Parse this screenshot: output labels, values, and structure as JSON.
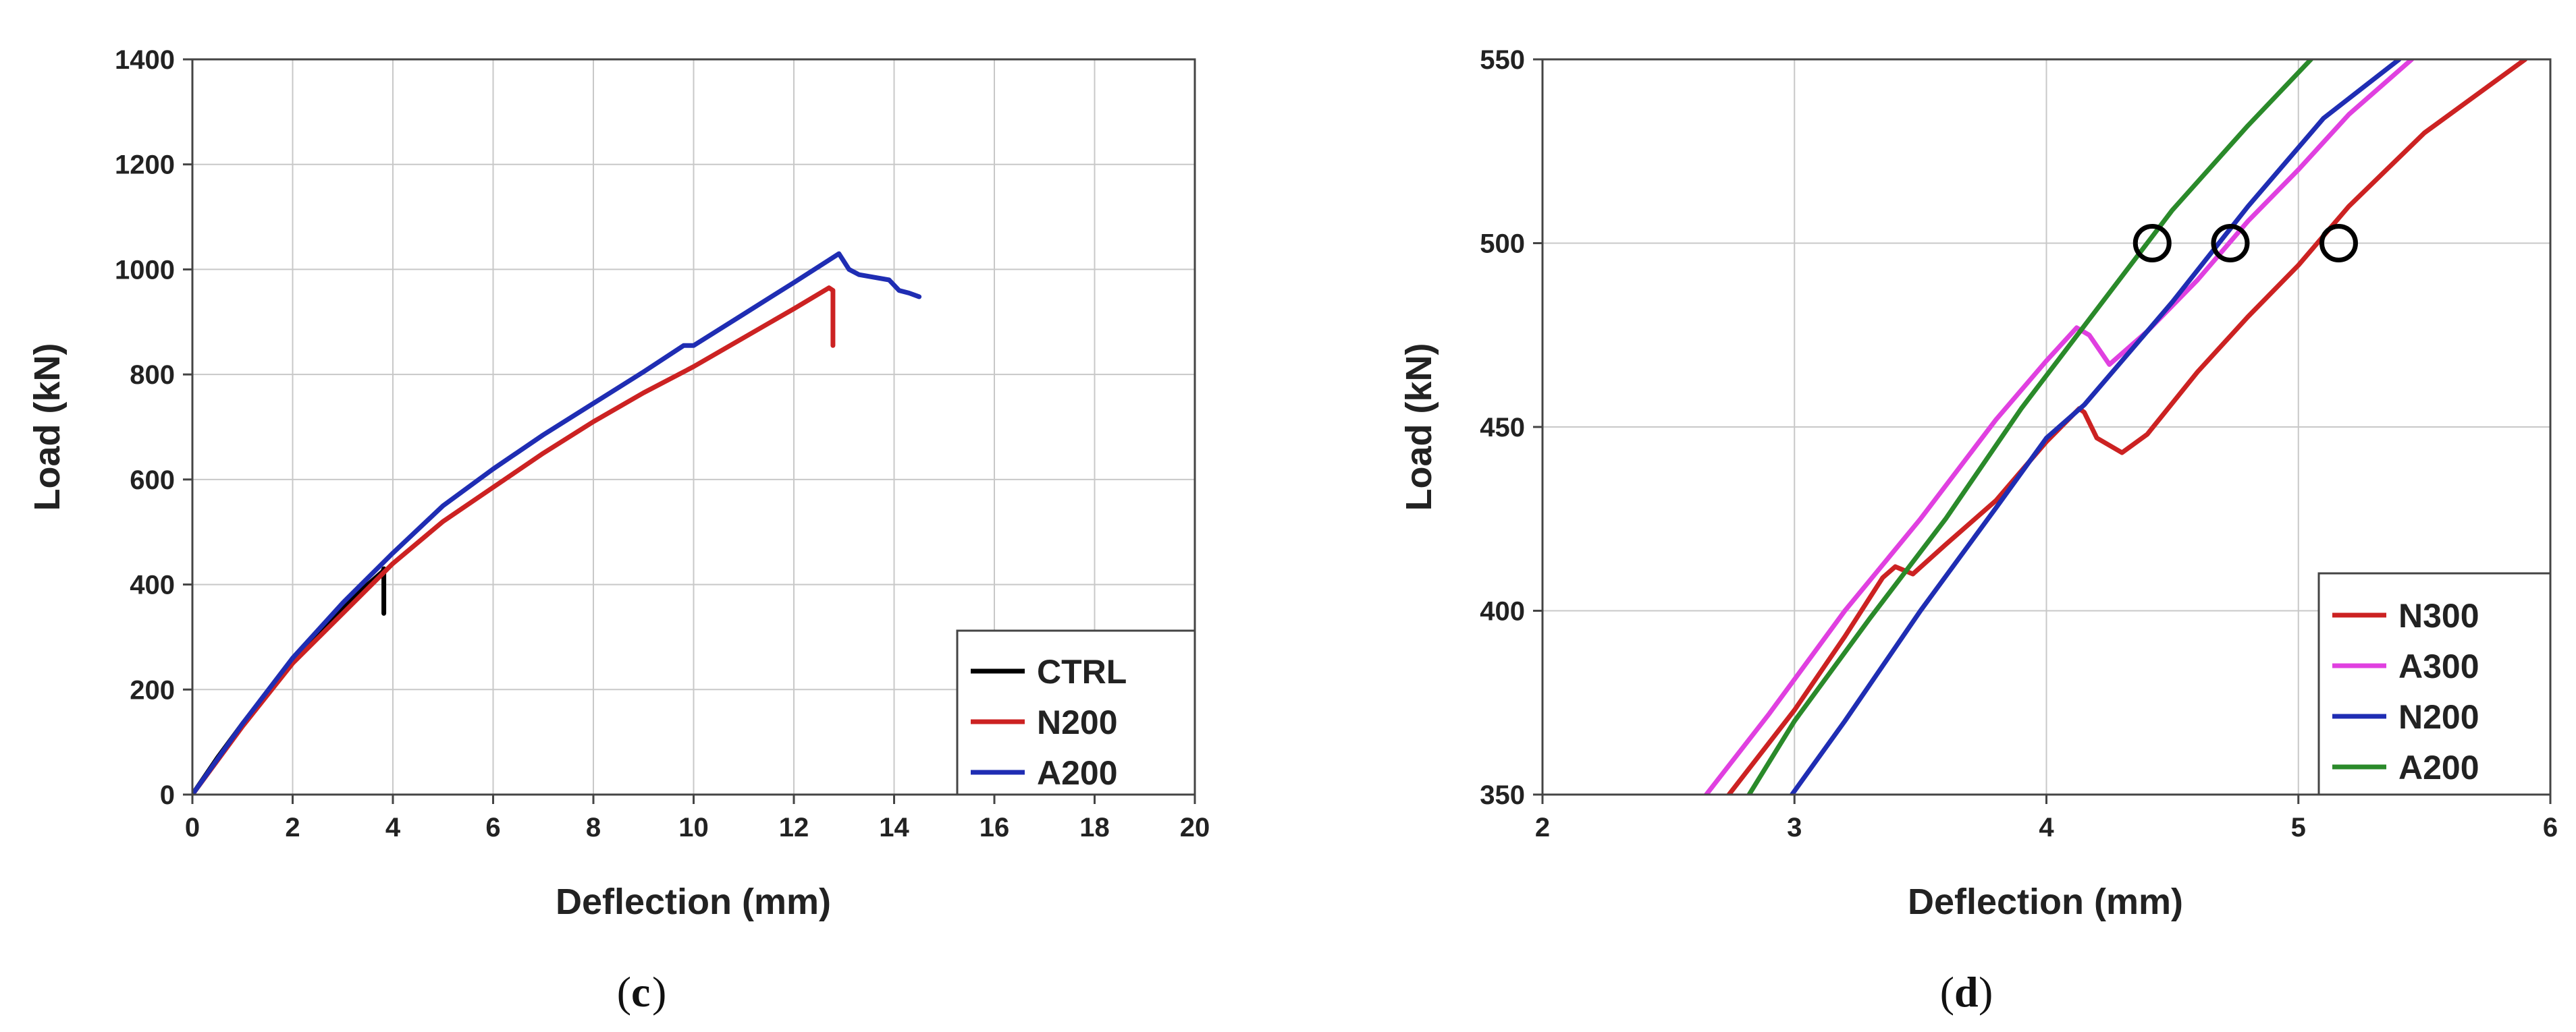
{
  "chart_data": [
    {
      "type": "line",
      "panel_label": "c",
      "xlabel": "Deflection (mm)",
      "ylabel": "Load (kN)",
      "xlim": [
        0,
        20
      ],
      "ylim": [
        0,
        1400
      ],
      "xticks": [
        0,
        2,
        4,
        6,
        8,
        10,
        12,
        14,
        16,
        18,
        20
      ],
      "yticks": [
        0,
        200,
        400,
        600,
        800,
        1000,
        1200,
        1400
      ],
      "grid": true,
      "legend_position": "bottom-right",
      "series": [
        {
          "name": "CTRL",
          "color": "#000000",
          "x": [
            0,
            0.5,
            1,
            1.5,
            2,
            2.5,
            3,
            3.5,
            3.8,
            3.82,
            3.82
          ],
          "y": [
            0,
            70,
            135,
            195,
            255,
            305,
            355,
            400,
            425,
            430,
            345
          ]
        },
        {
          "name": "N200",
          "color": "#cc2222",
          "x": [
            0,
            1,
            2,
            3,
            4,
            5,
            6,
            7,
            8,
            9,
            9.9,
            10,
            11,
            12,
            12.7,
            12.78,
            12.78
          ],
          "y": [
            0,
            130,
            250,
            345,
            440,
            520,
            585,
            650,
            710,
            765,
            810,
            815,
            870,
            925,
            965,
            960,
            855
          ]
        },
        {
          "name": "A200",
          "color": "#1f2db3",
          "x": [
            0,
            1,
            2,
            3,
            4,
            5,
            6,
            7,
            8,
            9,
            9.8,
            10,
            11,
            12,
            12.9,
            13.1,
            13.3,
            13.9,
            14.1,
            14.3,
            14.5
          ],
          "y": [
            0,
            135,
            260,
            365,
            460,
            550,
            620,
            685,
            745,
            805,
            855,
            855,
            915,
            975,
            1030,
            1000,
            990,
            980,
            960,
            955,
            948
          ]
        }
      ]
    },
    {
      "type": "line",
      "panel_label": "d",
      "xlabel": "Deflection (mm)",
      "ylabel": "Load (kN)",
      "xlim": [
        2,
        6
      ],
      "ylim": [
        350,
        550
      ],
      "xticks": [
        2,
        3,
        4,
        5,
        6
      ],
      "yticks": [
        350,
        400,
        450,
        500,
        550
      ],
      "grid": true,
      "legend_position": "bottom-right",
      "markers": [
        {
          "shape": "circle",
          "x": 4.42,
          "y": 500
        },
        {
          "shape": "circle",
          "x": 4.73,
          "y": 500
        },
        {
          "shape": "circle",
          "x": 5.16,
          "y": 500
        }
      ],
      "series": [
        {
          "name": "N300",
          "color": "#cc2222",
          "x": [
            2.74,
            3.0,
            3.2,
            3.35,
            3.4,
            3.47,
            3.6,
            3.8,
            4.0,
            4.13,
            4.15,
            4.2,
            4.3,
            4.4,
            4.6,
            4.8,
            5.0,
            5.2,
            5.5,
            5.9
          ],
          "y": [
            350,
            373,
            393,
            409,
            412,
            410,
            418,
            430,
            446,
            455,
            454,
            447,
            443,
            448,
            465,
            480,
            494,
            510,
            530,
            550
          ]
        },
        {
          "name": "A300",
          "color": "#e040e0",
          "x": [
            2.65,
            2.9,
            3.2,
            3.5,
            3.8,
            4.0,
            4.12,
            4.17,
            4.25,
            4.4,
            4.6,
            4.8,
            5.0,
            5.2,
            5.45
          ],
          "y": [
            350,
            372,
            400,
            425,
            452,
            468,
            477,
            475,
            467,
            476,
            490,
            506,
            520,
            535,
            550
          ]
        },
        {
          "name": "N200",
          "color": "#1f2db3",
          "x": [
            2.99,
            3.2,
            3.5,
            3.8,
            4.0,
            4.15,
            4.3,
            4.5,
            4.8,
            5.1,
            5.4
          ],
          "y": [
            350,
            370,
            400,
            428,
            447,
            456,
            468,
            484,
            510,
            534,
            550
          ]
        },
        {
          "name": "A200",
          "color": "#2a8a2a",
          "x": [
            2.82,
            3.0,
            3.3,
            3.6,
            3.9,
            4.2,
            4.5,
            4.8,
            5.05
          ],
          "y": [
            350,
            370,
            398,
            425,
            455,
            482,
            509,
            532,
            550
          ]
        }
      ]
    }
  ]
}
